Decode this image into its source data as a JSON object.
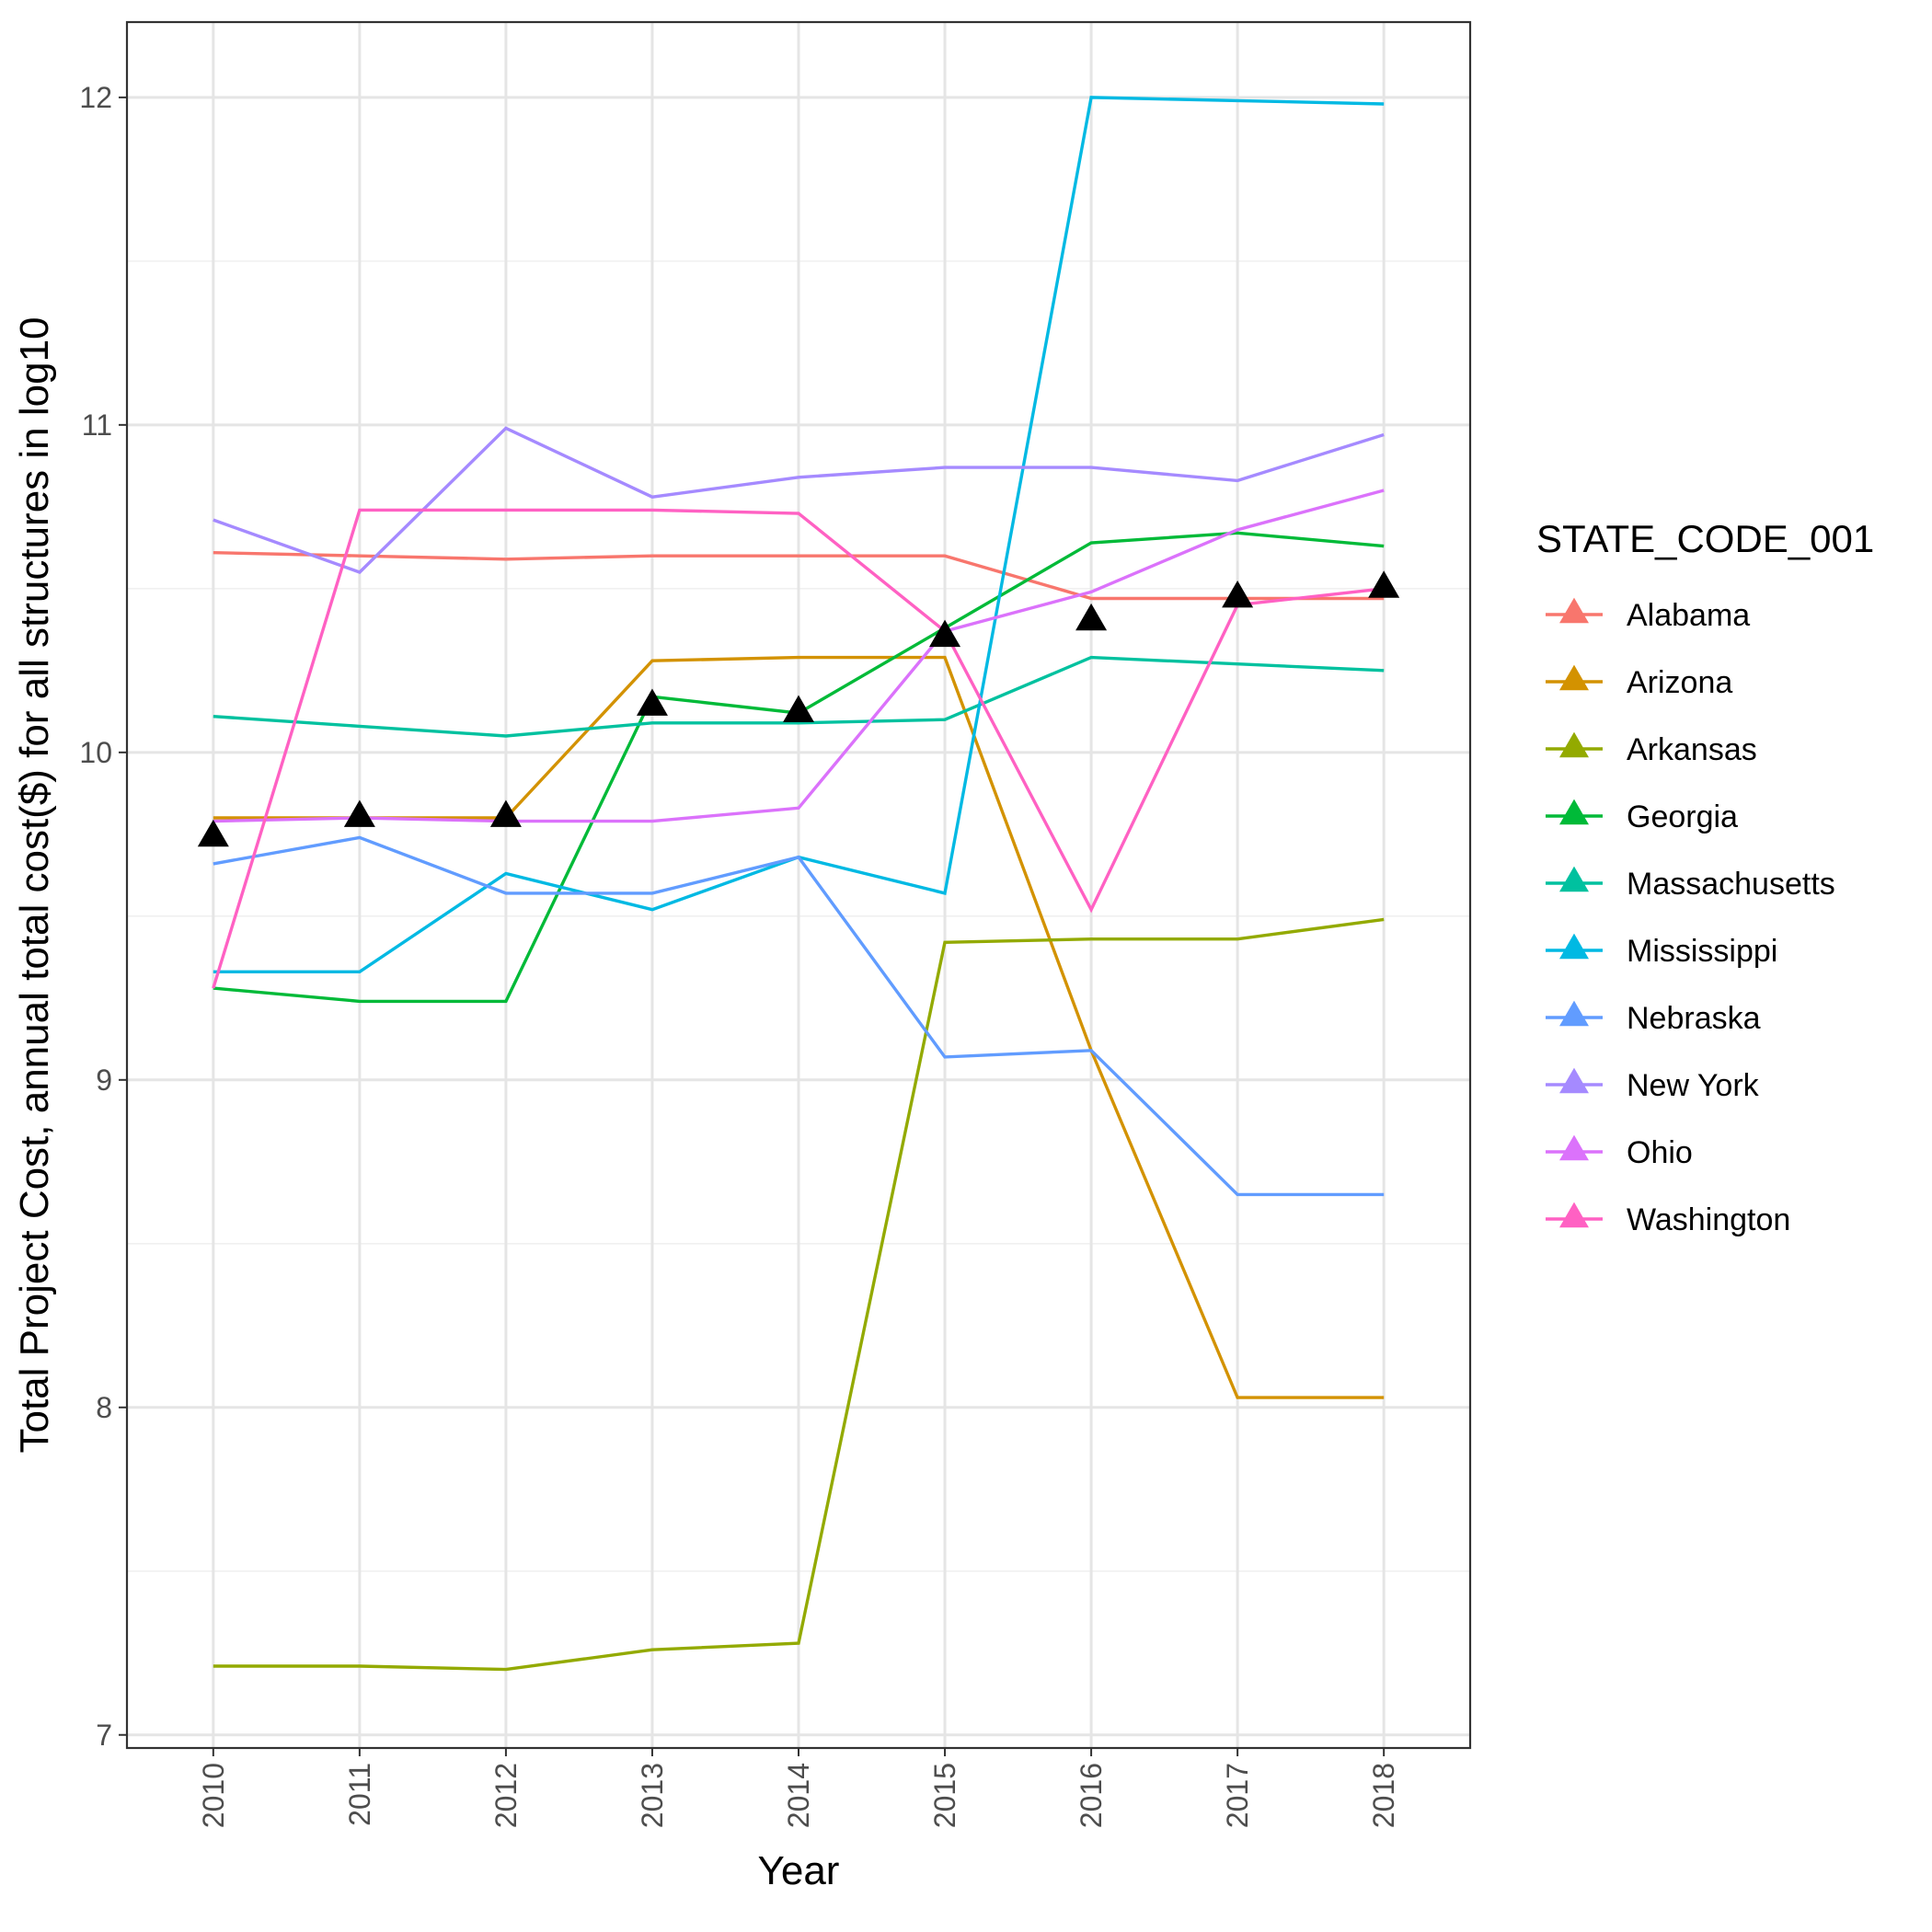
{
  "chart_data": {
    "type": "line",
    "title": "",
    "xlabel": "Year",
    "ylabel": "Total Project Cost, annual total cost($) for all structures in log10",
    "x": [
      2010,
      2011,
      2012,
      2013,
      2014,
      2015,
      2016,
      2017,
      2018
    ],
    "x_tick_labels": [
      "2010",
      "2011",
      "2012",
      "2013",
      "2014",
      "2015",
      "2016",
      "2017",
      "2018"
    ],
    "y_ticks": [
      7,
      8,
      9,
      10,
      11,
      12
    ],
    "y_tick_labels": [
      "7",
      "8",
      "9",
      "10",
      "11",
      "12"
    ],
    "ylim": [
      6.96,
      12.23
    ],
    "grid": true,
    "legend": {
      "title": "STATE_CODE_001",
      "position": "right"
    },
    "series": [
      {
        "name": "Alabama",
        "color": "#F8766D",
        "values": [
          10.61,
          10.6,
          10.59,
          10.6,
          10.6,
          10.6,
          10.47,
          10.47,
          10.47
        ]
      },
      {
        "name": "Arizona",
        "color": "#D39200",
        "values": [
          9.8,
          9.8,
          9.8,
          10.28,
          10.29,
          10.29,
          9.09,
          8.03,
          8.03
        ]
      },
      {
        "name": "Arkansas",
        "color": "#93AA00",
        "values": [
          7.21,
          7.21,
          7.2,
          7.26,
          7.28,
          9.42,
          9.43,
          9.43,
          9.49
        ]
      },
      {
        "name": "Georgia",
        "color": "#00BA38",
        "values": [
          9.28,
          9.24,
          9.24,
          10.17,
          10.12,
          10.38,
          10.64,
          10.67,
          10.63
        ]
      },
      {
        "name": "Massachusetts",
        "color": "#00C19F",
        "values": [
          10.11,
          10.08,
          10.05,
          10.09,
          10.09,
          10.1,
          10.29,
          10.27,
          10.25
        ]
      },
      {
        "name": "Mississippi",
        "color": "#00B9E3",
        "values": [
          9.33,
          9.33,
          9.63,
          9.52,
          9.68,
          9.57,
          12.0,
          11.99,
          11.98
        ]
      },
      {
        "name": "Nebraska",
        "color": "#619CFF",
        "values": [
          9.66,
          9.74,
          9.57,
          9.57,
          9.68,
          9.07,
          9.09,
          8.65,
          8.65
        ]
      },
      {
        "name": "New York",
        "color": "#A58AFF",
        "values": [
          10.71,
          10.55,
          10.99,
          10.78,
          10.84,
          10.87,
          10.87,
          10.83,
          10.97
        ]
      },
      {
        "name": "Ohio",
        "color": "#DB72FB",
        "values": [
          9.79,
          9.8,
          9.79,
          9.79,
          9.83,
          10.37,
          10.49,
          10.68,
          10.8
        ]
      },
      {
        "name": "Washington",
        "color": "#FF61C3",
        "values": [
          9.28,
          10.74,
          10.74,
          10.74,
          10.73,
          10.37,
          9.52,
          10.45,
          10.5
        ]
      }
    ],
    "mean_markers": {
      "shape": "triangle",
      "color": "#000000",
      "values": [
        9.74,
        9.8,
        9.8,
        10.14,
        10.12,
        10.35,
        10.4,
        10.47,
        10.5
      ]
    }
  }
}
